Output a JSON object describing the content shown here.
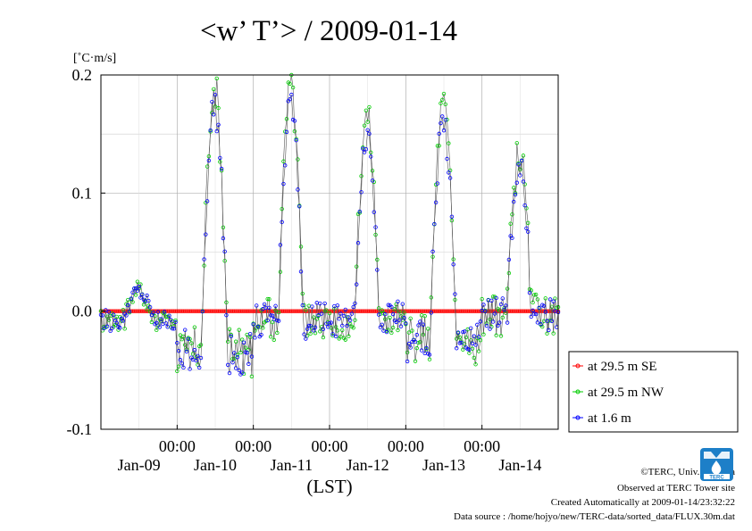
{
  "chart_data": {
    "type": "line",
    "title": "<w’ T’> / 2009-01-14",
    "ylabel": "[˚C·m/s]",
    "xlabel": "(LST)",
    "ylim": [
      -0.1,
      0.2
    ],
    "yticks": [
      "0.2",
      "0.1",
      "0.0",
      "-0.1"
    ],
    "ytick_values": [
      0.2,
      0.1,
      0.0,
      -0.1
    ],
    "x_range_days": [
      0,
      6
    ],
    "xtick_time_labels": [
      "00:00",
      "00:00",
      "00:00",
      "00:00",
      "00:00"
    ],
    "xtick_day_labels": [
      "Jan-09",
      "Jan-10",
      "Jan-11",
      "Jan-12",
      "Jan-13",
      "Jan-14"
    ],
    "grid": true,
    "legend_position": "right",
    "series": [
      {
        "name": "at 29.5 m SE",
        "color": "#ff0000",
        "marker": "o",
        "profile": "zero"
      },
      {
        "name": "at 29.5 m NW",
        "color": "#00cc00",
        "marker": "o",
        "profile": "nw"
      },
      {
        "name": "at 1.6 m",
        "color": "#0000ff",
        "marker": "o",
        "profile": "low"
      }
    ],
    "daily_peak": [
      0.035,
      0.19,
      0.19,
      0.165,
      0.175,
      0.135
    ],
    "nighttime_level": [
      -0.02,
      -0.045,
      -0.01,
      -0.01,
      -0.035,
      -0.005
    ]
  },
  "footer": {
    "copyright": "©TERC, Univ. Tsukuba",
    "observed": "Observed at TERC Tower site",
    "created": "Created Automatically at 2009-01-14/23:32:22",
    "source": "Data source : /home/hojyo/new/TERC-data/sorted_data/FLUX.30m.dat"
  },
  "logo_text": "TERC"
}
